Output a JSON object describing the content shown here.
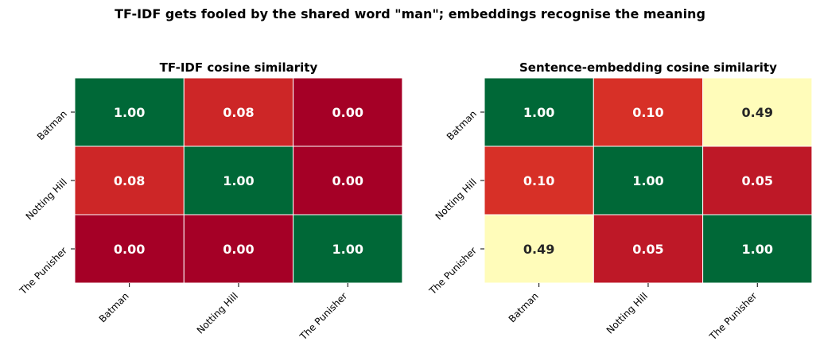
{
  "figure": {
    "title": "TF-IDF gets fooled by the shared word \"man\"; embeddings recognise the meaning"
  },
  "chart_data": [
    {
      "type": "heatmap",
      "title": "TF-IDF cosine similarity",
      "x_labels": [
        "Batman",
        "Notting Hill",
        "The Punisher"
      ],
      "y_labels": [
        "Batman",
        "Notting Hill",
        "The Punisher"
      ],
      "values": [
        [
          1.0,
          0.08,
          0.0
        ],
        [
          0.08,
          1.0,
          0.0
        ],
        [
          0.0,
          0.0,
          1.0
        ]
      ],
      "value_format": "0.00",
      "colormap": "RdYlGn",
      "vmin": 0,
      "vmax": 1,
      "colorbar": false
    },
    {
      "type": "heatmap",
      "title": "Sentence-embedding cosine similarity",
      "x_labels": [
        "Batman",
        "Notting Hill",
        "The Punisher"
      ],
      "y_labels": [
        "Batman",
        "Notting Hill",
        "The Punisher"
      ],
      "values": [
        [
          1.0,
          0.1,
          0.49
        ],
        [
          0.1,
          1.0,
          0.05
        ],
        [
          0.49,
          0.05,
          1.0
        ]
      ],
      "value_format": "0.00",
      "colormap": "RdYlGn",
      "vmin": 0,
      "vmax": 1,
      "colorbar": false
    }
  ]
}
